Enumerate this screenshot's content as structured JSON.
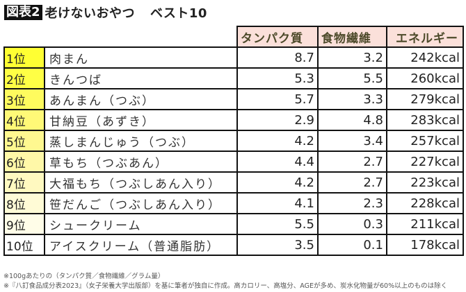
{
  "title": {
    "badge": "図表2",
    "text": "老けないおやつ",
    "subtitle": "ベスト10"
  },
  "table": {
    "headers": [
      "タンパク質",
      "食物繊維",
      "エネルギー"
    ],
    "rows": [
      {
        "rank": "1位",
        "name": "肉まん",
        "protein": "8.7",
        "fiber": "3.2",
        "energy": "242kcal"
      },
      {
        "rank": "2位",
        "name": "きんつば",
        "protein": "5.3",
        "fiber": "5.5",
        "energy": "260kcal"
      },
      {
        "rank": "3位",
        "name": "あんまん（つぶ）",
        "protein": "5.7",
        "fiber": "3.3",
        "energy": "279kcal"
      },
      {
        "rank": "4位",
        "name": "甘納豆（あずき）",
        "protein": "2.9",
        "fiber": "4.8",
        "energy": "283kcal"
      },
      {
        "rank": "5位",
        "name": "蒸しまんじゅう（つぶ）",
        "protein": "4.2",
        "fiber": "3.4",
        "energy": "257kcal"
      },
      {
        "rank": "6位",
        "name": "草もち（つぶあん）",
        "protein": "4.4",
        "fiber": "2.7",
        "energy": "227kcal"
      },
      {
        "rank": "7位",
        "name": "大福もち（つぶしあん入り）",
        "protein": "4.2",
        "fiber": "2.7",
        "energy": "223kcal"
      },
      {
        "rank": "8位",
        "name": "笹だんご（つぶしあん入り）",
        "protein": "4.1",
        "fiber": "2.3",
        "energy": "228kcal"
      },
      {
        "rank": "9位",
        "name": "シュークリーム",
        "protein": "5.5",
        "fiber": "0.3",
        "energy": "211kcal"
      },
      {
        "rank": "10位",
        "name": "アイスクリーム（普通脂肪）",
        "protein": "3.5",
        "fiber": "0.1",
        "energy": "178kcal"
      }
    ],
    "rank_colors": [
      "#ffff33",
      "#ffff45",
      "#fffb5e",
      "#fff977",
      "#fff890",
      "#fff8a8",
      "#fff9c0",
      "#fffbd6",
      "#fffde8",
      "#ffffff"
    ]
  },
  "notes": [
    "※100gあたりの（タンパク質／食物繊維／グラム量）",
    "※『八訂食品成分表2023』（女子栄養大学出版部）を基に筆者が独自に作成。高カロリー、高塩分、AGEが多め、炭水化物量が60%以上のものは除く"
  ],
  "colors": {
    "header_bg": "#fbe0da",
    "header_text": "#4d4a2a",
    "badge_bg": "#111111"
  }
}
